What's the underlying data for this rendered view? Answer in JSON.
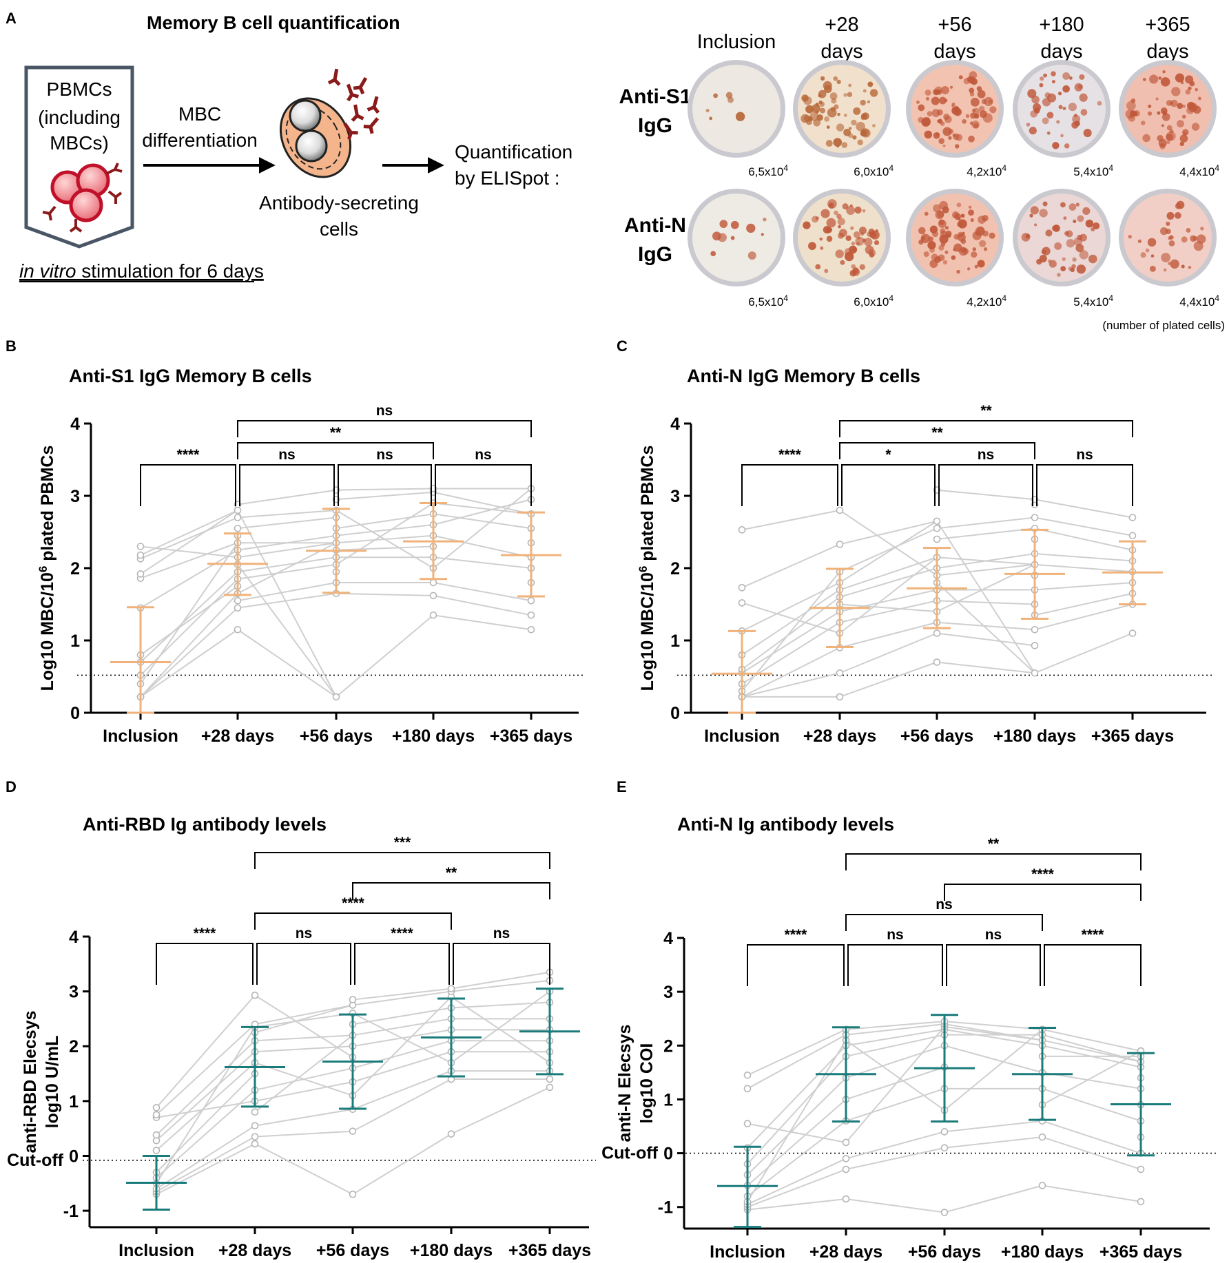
{
  "panel_a": {
    "label": "A",
    "title": "Memory B cell quantification",
    "pbmc_line1": "PBMCs",
    "pbmc_line2": "(including",
    "pbmc_line3": "MBCs)",
    "stim_italic": "in vitro",
    "stim_rest": " stimulation for 6 days",
    "mbc_line1": "MBC",
    "mbc_line2": "differentiation",
    "asc_line1": "Antibody-secreting",
    "asc_line2": "cells",
    "quant_line1": "Quantification",
    "quant_line2": "by ELISpot :",
    "columns": [
      {
        "l1": "Inclusion",
        "l2": ""
      },
      {
        "l1": "+28",
        "l2": "days"
      },
      {
        "l1": "+56",
        "l2": "days"
      },
      {
        "l1": "+180",
        "l2": "days"
      },
      {
        "l1": "+365",
        "l2": "days"
      }
    ],
    "rows": [
      {
        "l1": "Anti-S1",
        "l2": "IgG"
      },
      {
        "l1": "Anti-N",
        "l2": "IgG"
      }
    ],
    "plated_cells": [
      {
        "base": "6,5x10",
        "exp": "4"
      },
      {
        "base": "6,0x10",
        "exp": "4"
      },
      {
        "base": "4,2x10",
        "exp": "4"
      },
      {
        "base": "5,4x10",
        "exp": "4"
      },
      {
        "base": "4,4x10",
        "exp": "4"
      }
    ],
    "plated_note": "(number of plated cells)",
    "colors": {
      "antibody": "#8b1a1a",
      "cell_fill": "#f08080",
      "cell_stroke": "#c0102a",
      "box": "#4a5566",
      "asc_fill": "#f5b58c",
      "spot": "#c0583a"
    }
  },
  "chart_data": [
    {
      "panel": "B",
      "type": "scatter",
      "title": "Anti-S1 IgG Memory B cells",
      "ylabel_pre": "Log10 MBC/10",
      "ylabel_sup": "6",
      "ylabel_post": " plated PBMCs",
      "categories": [
        "Inclusion",
        "+28 days",
        "+56 days",
        "+180 days",
        "+365 days"
      ],
      "ylim": [
        0,
        4
      ],
      "yticks": [
        "0",
        "1",
        "2",
        "3",
        "4"
      ],
      "threshold": 0.52,
      "color": "#f0b27a",
      "series": [
        {
          "name": "mean",
          "values": [
            0.7,
            2.06,
            2.24,
            2.37,
            2.18
          ]
        },
        {
          "name": "sd_low",
          "values": [
            0.0,
            1.63,
            1.66,
            1.85,
            1.61
          ]
        },
        {
          "name": "sd_high",
          "values": [
            1.46,
            2.48,
            2.82,
            2.9,
            2.77
          ]
        }
      ],
      "points": [
        [
          0.22,
          0.22,
          0.22,
          0.4,
          0.52,
          0.7,
          0.8,
          1.45,
          1.86,
          1.92,
          2.13,
          2.18,
          2.3
        ],
        [
          1.15,
          1.45,
          1.55,
          1.65,
          1.75,
          1.85,
          1.95,
          2.05,
          2.15,
          2.25,
          2.35,
          2.45,
          2.55,
          2.7,
          2.8,
          2.88
        ],
        [
          0.22,
          1.65,
          1.8,
          1.95,
          2.05,
          2.15,
          2.25,
          2.35,
          2.45,
          2.55,
          2.7,
          2.8,
          2.95,
          3.08
        ],
        [
          1.35,
          1.62,
          1.8,
          2.0,
          2.15,
          2.3,
          2.45,
          2.6,
          2.75,
          2.9,
          3.05,
          3.1
        ],
        [
          1.15,
          1.35,
          1.55,
          1.8,
          2.0,
          2.15,
          2.35,
          2.55,
          2.75,
          2.95,
          3.1
        ]
      ],
      "brackets": [
        {
          "from": 0,
          "to": 1,
          "label": "****",
          "level": 0
        },
        {
          "from": 1,
          "to": 2,
          "label": "ns",
          "level": 0
        },
        {
          "from": 2,
          "to": 3,
          "label": "ns",
          "level": 0
        },
        {
          "from": 3,
          "to": 4,
          "label": "ns",
          "level": 0
        },
        {
          "from": 1,
          "to": 3,
          "label": "**",
          "level": 1
        },
        {
          "from": 1,
          "to": 4,
          "label": "ns",
          "level": 2
        }
      ]
    },
    {
      "panel": "C",
      "type": "scatter",
      "title": "Anti-N IgG Memory B cells",
      "ylabel_pre": "Log10 MBC/10",
      "ylabel_sup": "6",
      "ylabel_post": " plated PBMCs",
      "categories": [
        "Inclusion",
        "+28 days",
        "+56 days",
        "+180 days",
        "+365 days"
      ],
      "ylim": [
        0,
        4
      ],
      "yticks": [
        "0",
        "1",
        "2",
        "3",
        "4"
      ],
      "threshold": 0.52,
      "color": "#f0b27a",
      "series": [
        {
          "name": "mean",
          "values": [
            0.54,
            1.45,
            1.72,
            1.92,
            1.94
          ]
        },
        {
          "name": "sd_low",
          "values": [
            0.0,
            0.91,
            1.17,
            1.3,
            1.5
          ]
        },
        {
          "name": "sd_high",
          "values": [
            1.13,
            1.99,
            2.28,
            2.53,
            2.37
          ]
        }
      ],
      "points": [
        [
          0.22,
          0.22,
          0.22,
          0.3,
          0.4,
          0.55,
          0.6,
          0.8,
          1.13,
          1.52,
          1.73,
          2.53
        ],
        [
          0.22,
          0.55,
          0.9,
          1.1,
          1.25,
          1.4,
          1.5,
          1.6,
          1.7,
          1.8,
          1.95,
          2.33,
          2.8
        ],
        [
          0.7,
          1.1,
          1.25,
          1.4,
          1.55,
          1.7,
          1.8,
          1.9,
          2.0,
          2.15,
          2.4,
          2.55,
          2.65,
          3.08
        ],
        [
          0.55,
          0.93,
          1.15,
          1.35,
          1.5,
          1.7,
          1.9,
          2.05,
          2.2,
          2.4,
          2.55,
          2.7,
          2.88,
          2.95
        ],
        [
          1.1,
          1.5,
          1.65,
          1.8,
          1.95,
          2.1,
          2.25,
          2.45,
          2.7
        ]
      ],
      "brackets": [
        {
          "from": 0,
          "to": 1,
          "label": "****",
          "level": 0
        },
        {
          "from": 1,
          "to": 2,
          "label": "*",
          "level": 0
        },
        {
          "from": 2,
          "to": 3,
          "label": "ns",
          "level": 0
        },
        {
          "from": 3,
          "to": 4,
          "label": "ns",
          "level": 0
        },
        {
          "from": 1,
          "to": 3,
          "label": "**",
          "level": 1
        },
        {
          "from": 1,
          "to": 4,
          "label": "**",
          "level": 2
        }
      ]
    },
    {
      "panel": "D",
      "type": "scatter",
      "title": "Anti-RBD Ig antibody levels",
      "ylabel_line1": "anti-RBD Elecsys",
      "ylabel_line2": "log10 U/mL",
      "categories": [
        "Inclusion",
        "+28 days",
        "+56 days",
        "+180 days",
        "+365 days"
      ],
      "ylim": [
        -1.3,
        4
      ],
      "yticks": [
        "-1",
        "0",
        "1",
        "2",
        "3",
        "4"
      ],
      "threshold": -0.08,
      "threshold_label": "Cut-off",
      "color": "#1a7b7b",
      "series": [
        {
          "name": "mean",
          "values": [
            -0.49,
            1.62,
            1.72,
            2.16,
            2.27
          ]
        },
        {
          "name": "sd_low",
          "values": [
            -0.98,
            0.9,
            0.86,
            1.45,
            1.49
          ]
        },
        {
          "name": "sd_high",
          "values": [
            0.0,
            2.35,
            2.58,
            2.87,
            3.05
          ]
        }
      ],
      "points": [
        [
          -0.7,
          -0.65,
          -0.6,
          -0.5,
          -0.4,
          -0.3,
          0.1,
          0.28,
          0.38,
          0.7,
          0.75,
          0.88
        ],
        [
          0.22,
          0.35,
          0.55,
          0.8,
          1.0,
          1.2,
          1.5,
          1.7,
          1.9,
          2.1,
          2.25,
          2.35,
          2.4,
          2.93
        ],
        [
          -0.7,
          0.45,
          0.85,
          1.1,
          1.35,
          1.6,
          1.8,
          2.0,
          2.2,
          2.4,
          2.6,
          2.75,
          2.85
        ],
        [
          0.4,
          1.4,
          1.55,
          1.7,
          1.9,
          2.1,
          2.3,
          2.5,
          2.7,
          2.9,
          3.0,
          3.05
        ],
        [
          1.25,
          1.4,
          1.55,
          1.7,
          1.9,
          2.1,
          2.3,
          2.5,
          2.8,
          3.0,
          3.2,
          3.35
        ]
      ],
      "brackets": [
        {
          "from": 0,
          "to": 1,
          "label": "****",
          "level": 0
        },
        {
          "from": 1,
          "to": 2,
          "label": "ns",
          "level": 0
        },
        {
          "from": 2,
          "to": 3,
          "label": "****",
          "level": 0
        },
        {
          "from": 3,
          "to": 4,
          "label": "ns",
          "level": 0
        },
        {
          "from": 1,
          "to": 3,
          "label": "****",
          "level": 1
        },
        {
          "from": 2,
          "to": 4,
          "label": "**",
          "level": 2
        },
        {
          "from": 1,
          "to": 4,
          "label": "***",
          "level": 3
        }
      ]
    },
    {
      "panel": "E",
      "type": "scatter",
      "title": "Anti-N Ig antibody levels",
      "ylabel_line1": "anti-N Elecsys",
      "ylabel_line2": "log10 COI",
      "categories": [
        "Inclusion",
        "+28 days",
        "+56 days",
        "+180 days",
        "+365 days"
      ],
      "ylim": [
        -1.4,
        4
      ],
      "yticks": [
        "-1",
        "0",
        "1",
        "2",
        "3",
        "4"
      ],
      "threshold": 0.0,
      "threshold_label": "Cut-off",
      "color": "#1a7b7b",
      "series": [
        {
          "name": "mean",
          "values": [
            -0.61,
            1.47,
            1.58,
            1.47,
            0.91
          ]
        },
        {
          "name": "sd_low",
          "values": [
            -1.37,
            0.59,
            0.59,
            0.62,
            -0.04
          ]
        },
        {
          "name": "sd_high",
          "values": [
            0.12,
            2.34,
            2.57,
            2.33,
            1.86
          ]
        }
      ],
      "points": [
        [
          -1.05,
          -1.0,
          -0.95,
          -0.9,
          -0.8,
          -0.6,
          -0.4,
          -0.2,
          0.1,
          0.55,
          1.2,
          1.45
        ],
        [
          -0.85,
          -0.3,
          -0.1,
          0.2,
          0.6,
          1.0,
          1.4,
          1.8,
          2.0,
          2.1,
          2.2,
          2.3
        ],
        [
          -1.1,
          0.1,
          0.4,
          0.8,
          1.2,
          1.6,
          2.0,
          2.2,
          2.3,
          2.35,
          2.4,
          2.45
        ],
        [
          -0.6,
          0.3,
          0.6,
          0.9,
          1.2,
          1.5,
          1.8,
          2.0,
          2.1,
          2.2,
          2.3
        ],
        [
          -0.9,
          -0.3,
          0.0,
          0.3,
          0.6,
          0.9,
          1.2,
          1.4,
          1.6,
          1.7,
          1.8,
          1.9
        ]
      ],
      "brackets": [
        {
          "from": 0,
          "to": 1,
          "label": "****",
          "level": 0
        },
        {
          "from": 1,
          "to": 2,
          "label": "ns",
          "level": 0
        },
        {
          "from": 2,
          "to": 3,
          "label": "ns",
          "level": 0
        },
        {
          "from": 3,
          "to": 4,
          "label": "****",
          "level": 0
        },
        {
          "from": 1,
          "to": 3,
          "label": "ns",
          "level": 1
        },
        {
          "from": 2,
          "to": 4,
          "label": "****",
          "level": 2
        },
        {
          "from": 1,
          "to": 4,
          "label": "**",
          "level": 3
        }
      ]
    }
  ]
}
